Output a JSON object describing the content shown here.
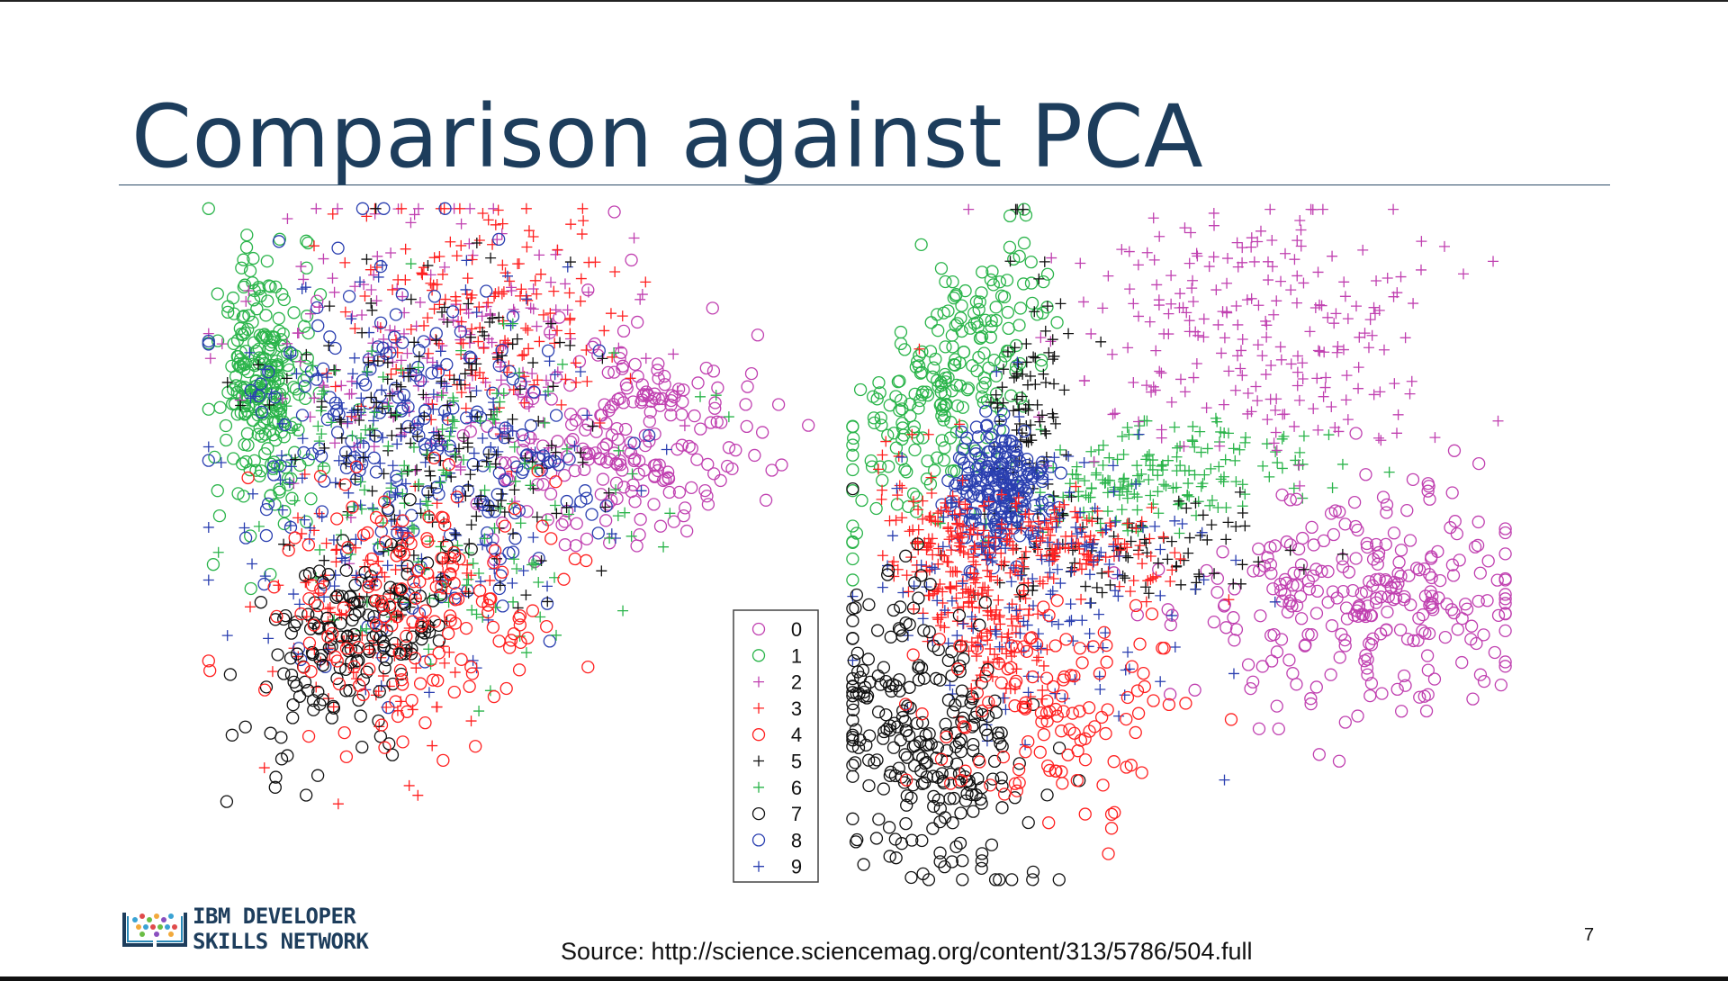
{
  "slide": {
    "title": "Comparison against PCA",
    "source": "Source: http://science.sciencemag.org/content/313/5786/504.full",
    "page_number": "7",
    "logo": {
      "line1": "IBM DEVELOPER",
      "line2": "SKILLS NETWORK"
    }
  },
  "chart_data": {
    "type": "scatter",
    "description_note": "",
    "legend_placement": "bottom-center",
    "classes": [
      {
        "label": "0",
        "marker": "circle",
        "color": "#c040b0"
      },
      {
        "label": "1",
        "marker": "circle",
        "color": "#2ab44a"
      },
      {
        "label": "2",
        "marker": "plus",
        "color": "#c040b0"
      },
      {
        "label": "3",
        "marker": "plus",
        "color": "#ff2020"
      },
      {
        "label": "4",
        "marker": "circle",
        "color": "#ff2020"
      },
      {
        "label": "5",
        "marker": "plus",
        "color": "#111111"
      },
      {
        "label": "6",
        "marker": "plus",
        "color": "#2ab44a"
      },
      {
        "label": "7",
        "marker": "circle",
        "color": "#111111"
      },
      {
        "label": "8",
        "marker": "circle",
        "color": "#2a3fb0"
      },
      {
        "label": "9",
        "marker": "plus",
        "color": "#2a3fb0"
      }
    ],
    "panels": [
      {
        "name": "",
        "clusters": [
          {
            "cls": 1,
            "x": 0.1,
            "y": 0.3,
            "sx": 0.04,
            "sy": 0.1,
            "n": 260,
            "rot": 0
          },
          {
            "cls": 0,
            "x": 0.7,
            "y": 0.38,
            "sx": 0.12,
            "sy": 0.09,
            "n": 230,
            "rot": 0
          },
          {
            "cls": 2,
            "x": 0.38,
            "y": 0.25,
            "sx": 0.15,
            "sy": 0.12,
            "n": 190,
            "rot": 0
          },
          {
            "cls": 3,
            "x": 0.45,
            "y": 0.18,
            "sx": 0.11,
            "sy": 0.1,
            "n": 170,
            "rot": 0
          },
          {
            "cls": 3,
            "x": 0.28,
            "y": 0.68,
            "sx": 0.09,
            "sy": 0.1,
            "n": 120,
            "rot": 0
          },
          {
            "cls": 8,
            "x": 0.35,
            "y": 0.4,
            "sx": 0.14,
            "sy": 0.15,
            "n": 230,
            "rot": 0
          },
          {
            "cls": 9,
            "x": 0.32,
            "y": 0.45,
            "sx": 0.15,
            "sy": 0.16,
            "n": 170,
            "rot": 0
          },
          {
            "cls": 5,
            "x": 0.4,
            "y": 0.38,
            "sx": 0.14,
            "sy": 0.14,
            "n": 180,
            "rot": 0
          },
          {
            "cls": 6,
            "x": 0.42,
            "y": 0.48,
            "sx": 0.15,
            "sy": 0.13,
            "n": 160,
            "rot": 0
          },
          {
            "cls": 7,
            "x": 0.25,
            "y": 0.72,
            "sx": 0.06,
            "sy": 0.1,
            "n": 170,
            "rot": 0.6
          },
          {
            "cls": 4,
            "x": 0.35,
            "y": 0.66,
            "sx": 0.12,
            "sy": 0.11,
            "n": 160,
            "rot": 0
          }
        ]
      },
      {
        "name": "",
        "clusters": [
          {
            "cls": 1,
            "x": 0.15,
            "y": 0.25,
            "sx": 0.05,
            "sy": 0.12,
            "n": 230,
            "rot": 0.6
          },
          {
            "cls": 6,
            "x": 0.45,
            "y": 0.4,
            "sx": 0.12,
            "sy": 0.04,
            "n": 190,
            "rot": -0.15
          },
          {
            "cls": 2,
            "x": 0.6,
            "y": 0.18,
            "sx": 0.14,
            "sy": 0.1,
            "n": 230,
            "rot": 0
          },
          {
            "cls": 0,
            "x": 0.78,
            "y": 0.58,
            "sx": 0.12,
            "sy": 0.08,
            "n": 280,
            "rot": 0
          },
          {
            "cls": 5,
            "x": 0.28,
            "y": 0.3,
            "sx": 0.03,
            "sy": 0.1,
            "n": 90,
            "rot": 0
          },
          {
            "cls": 5,
            "x": 0.4,
            "y": 0.52,
            "sx": 0.12,
            "sy": 0.04,
            "n": 90,
            "rot": 0
          },
          {
            "cls": 8,
            "x": 0.23,
            "y": 0.42,
            "sx": 0.04,
            "sy": 0.05,
            "n": 230,
            "rot": 0
          },
          {
            "cls": 3,
            "x": 0.18,
            "y": 0.56,
            "sx": 0.04,
            "sy": 0.09,
            "n": 260,
            "rot": -0.4
          },
          {
            "cls": 3,
            "x": 0.35,
            "y": 0.5,
            "sx": 0.08,
            "sy": 0.03,
            "n": 130,
            "rot": 0.2
          },
          {
            "cls": 9,
            "x": 0.3,
            "y": 0.55,
            "sx": 0.12,
            "sy": 0.1,
            "n": 170,
            "rot": 0
          },
          {
            "cls": 7,
            "x": 0.12,
            "y": 0.78,
            "sx": 0.07,
            "sy": 0.12,
            "n": 270,
            "rot": -0.4
          },
          {
            "cls": 4,
            "x": 0.32,
            "y": 0.74,
            "sx": 0.1,
            "sy": 0.08,
            "n": 130,
            "rot": 0
          }
        ]
      }
    ]
  }
}
